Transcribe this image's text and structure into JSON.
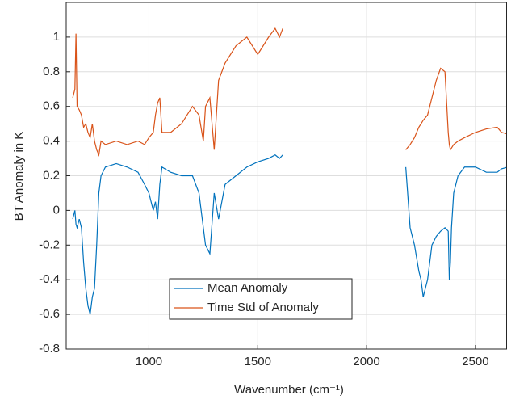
{
  "chart_data": {
    "type": "line",
    "xlabel": "Wavenumber (cm⁻¹)",
    "ylabel": "BT Anomaly in K",
    "x": [
      650,
      660,
      665,
      670,
      680,
      690,
      700,
      710,
      720,
      730,
      740,
      750,
      760,
      770,
      780,
      800,
      850,
      900,
      950,
      980,
      1000,
      1020,
      1030,
      1040,
      1050,
      1060,
      1100,
      1150,
      1200,
      1230,
      1250,
      1260,
      1280,
      1300,
      1320,
      1350,
      1400,
      1450,
      1500,
      1550,
      1580,
      1600,
      1615,
      1900,
      2180,
      2200,
      2220,
      2240,
      2250,
      2260,
      2280,
      2300,
      2320,
      2340,
      2360,
      2375,
      2380,
      2385,
      2390,
      2400,
      2420,
      2450,
      2500,
      2550,
      2600,
      2620,
      2650
    ],
    "series": [
      {
        "name": "Mean Anomaly",
        "color": "#0072bd",
        "values": [
          -0.05,
          0.0,
          -0.08,
          -0.1,
          -0.05,
          -0.1,
          -0.3,
          -0.45,
          -0.55,
          -0.6,
          -0.5,
          -0.45,
          -0.2,
          0.1,
          0.2,
          0.25,
          0.27,
          0.25,
          0.22,
          0.15,
          0.1,
          0.0,
          0.05,
          -0.05,
          0.15,
          0.25,
          0.22,
          0.2,
          0.2,
          0.1,
          -0.1,
          -0.2,
          -0.25,
          0.1,
          -0.05,
          0.15,
          0.2,
          0.25,
          0.28,
          0.3,
          0.32,
          0.3,
          0.32,
          null,
          0.25,
          -0.1,
          -0.2,
          -0.35,
          -0.4,
          -0.5,
          -0.4,
          -0.2,
          -0.15,
          -0.12,
          -0.1,
          -0.12,
          -0.4,
          -0.3,
          -0.1,
          0.1,
          0.2,
          0.25,
          0.25,
          0.22,
          0.22,
          0.24,
          0.25
        ]
      },
      {
        "name": "Time Std of Anomaly",
        "color": "#d95319",
        "values": [
          0.65,
          0.7,
          1.02,
          0.6,
          0.58,
          0.55,
          0.48,
          0.5,
          0.45,
          0.42,
          0.5,
          0.4,
          0.35,
          0.32,
          0.4,
          0.38,
          0.4,
          0.38,
          0.4,
          0.38,
          0.42,
          0.45,
          0.55,
          0.62,
          0.65,
          0.45,
          0.45,
          0.5,
          0.6,
          0.55,
          0.4,
          0.6,
          0.65,
          0.35,
          0.75,
          0.85,
          0.95,
          1.0,
          0.9,
          1.0,
          1.05,
          1.0,
          1.05,
          null,
          0.35,
          0.38,
          0.42,
          0.48,
          0.5,
          0.52,
          0.55,
          0.65,
          0.75,
          0.82,
          0.8,
          0.45,
          0.38,
          0.35,
          0.36,
          0.38,
          0.4,
          0.42,
          0.45,
          0.47,
          0.48,
          0.45,
          0.44
        ]
      }
    ],
    "xlim": [
      620,
      2645
    ],
    "ylim": [
      -0.8,
      1.2
    ],
    "xticks": [
      1000,
      1500,
      2000,
      2500
    ],
    "yticks": [
      -0.8,
      -0.6,
      -0.4,
      -0.2,
      0,
      0.2,
      0.4,
      0.6,
      0.8,
      1
    ],
    "grid": true
  }
}
